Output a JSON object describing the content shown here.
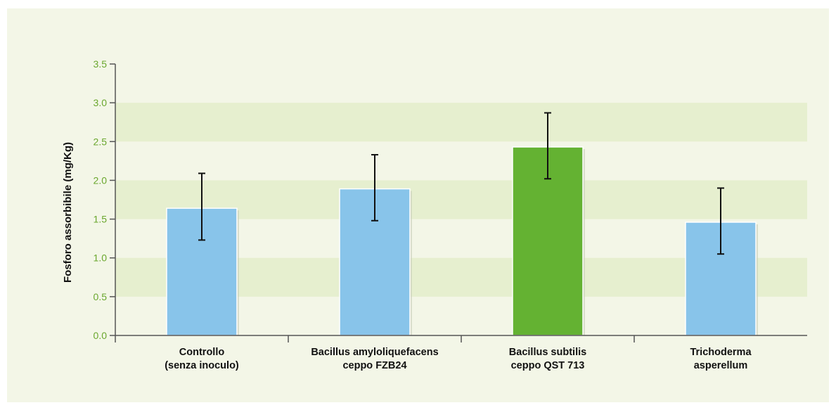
{
  "chart_data": {
    "type": "bar",
    "ylabel": "Fosforo assorbibile (mg/Kg)",
    "ylim": [
      0,
      3.5
    ],
    "yticks": [
      "0.0",
      "0.5",
      "1.0",
      "1.5",
      "2.0",
      "2.5",
      "3.0",
      "3.5"
    ],
    "categories": [
      [
        "Controllo",
        "(senza inoculo)"
      ],
      [
        "Bacillus amyloliquefacens",
        "ceppo FZB24"
      ],
      [
        "Bacillus subtilis",
        "ceppo QST 713"
      ],
      [
        "Trichoderma",
        "asperellum"
      ]
    ],
    "values": [
      1.64,
      1.89,
      2.43,
      1.46
    ],
    "error_low": [
      1.23,
      1.48,
      2.02,
      1.05
    ],
    "error_high": [
      2.09,
      2.33,
      2.87,
      1.9
    ],
    "bar_colors": [
      "#88c4ea",
      "#88c4ea",
      "#64b232",
      "#88c4ea"
    ],
    "band_color": "#e6efcf",
    "axis_color": "#555555",
    "tick_color": "#6aa72e"
  }
}
